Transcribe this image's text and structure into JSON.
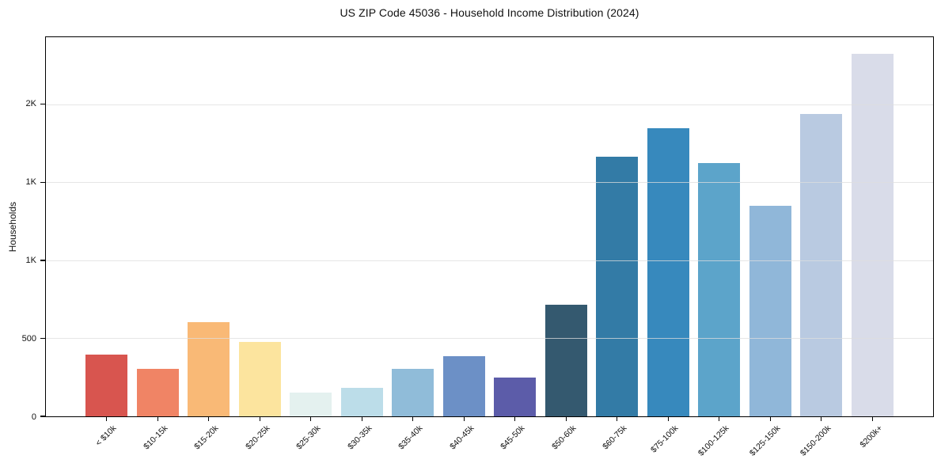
{
  "chart_data": {
    "type": "bar",
    "title": "US ZIP Code 45036 - Household Income Distribution (2024)",
    "xlabel": "",
    "ylabel": "Households",
    "categories": [
      "< $10k",
      "$10-15k",
      "$15-20k",
      "$20-25k",
      "$25-30k",
      "$30-35k",
      "$35-40k",
      "$40-45k",
      "$45-50k",
      "$50-60k",
      "$60-75k",
      "$75-100k",
      "$100-125k",
      "$125-150k",
      "$150-200k",
      "$200k+"
    ],
    "values": [
      395,
      305,
      605,
      475,
      150,
      185,
      305,
      385,
      250,
      715,
      1665,
      1845,
      1625,
      1350,
      1940,
      2325
    ],
    "bar_colors": [
      "#d8554f",
      "#f08465",
      "#f9b976",
      "#fce49e",
      "#e4f1ef",
      "#bcdde9",
      "#90bcd9",
      "#6c90c6",
      "#5c5ca9",
      "#34596f",
      "#337ba6",
      "#3789bd",
      "#5ca4ca",
      "#90b7d9",
      "#b9cae1",
      "#d9dce9"
    ],
    "ylim": [
      0,
      2430
    ],
    "yticks": {
      "positions": [
        0,
        500,
        1000,
        1500,
        2000
      ],
      "labels": [
        "0",
        "500",
        "1K",
        "1K",
        "2K"
      ]
    },
    "grid": "horizontal",
    "legend": "none",
    "axis_color": "#000000",
    "grid_color": "#dedede",
    "background_color": "#ffffff"
  }
}
